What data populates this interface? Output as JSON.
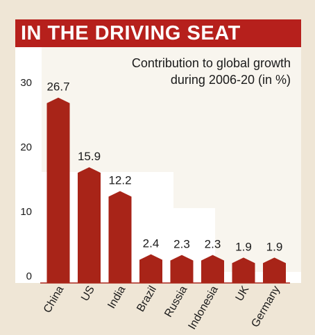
{
  "headline": "IN THE DRIVING SEAT",
  "chart_data": {
    "type": "bar",
    "title": "IN THE DRIVING SEAT",
    "subtitle_lines": [
      "Contribution to global growth",
      "during 2006-20 (in %)"
    ],
    "categories": [
      "China",
      "US",
      "India",
      "Brazil",
      "Russia",
      "Indonesia",
      "UK",
      "Germany"
    ],
    "values": [
      26.7,
      15.9,
      12.2,
      2.4,
      2.3,
      2.3,
      1.9,
      1.9
    ],
    "value_labels": [
      "26.7",
      "15.9",
      "12.2",
      "2.4",
      "2.3",
      "2.3",
      "1.9",
      "1.9"
    ],
    "yticks": [
      "0",
      "10",
      "20",
      "30"
    ],
    "ylim": [
      0,
      30
    ],
    "xlabel": "",
    "ylabel": "",
    "grid": false,
    "colors": {
      "bar": "#a82418",
      "headline_bg": "#b6201c",
      "background": "#efe6d6",
      "panel": "#ffffff"
    }
  }
}
